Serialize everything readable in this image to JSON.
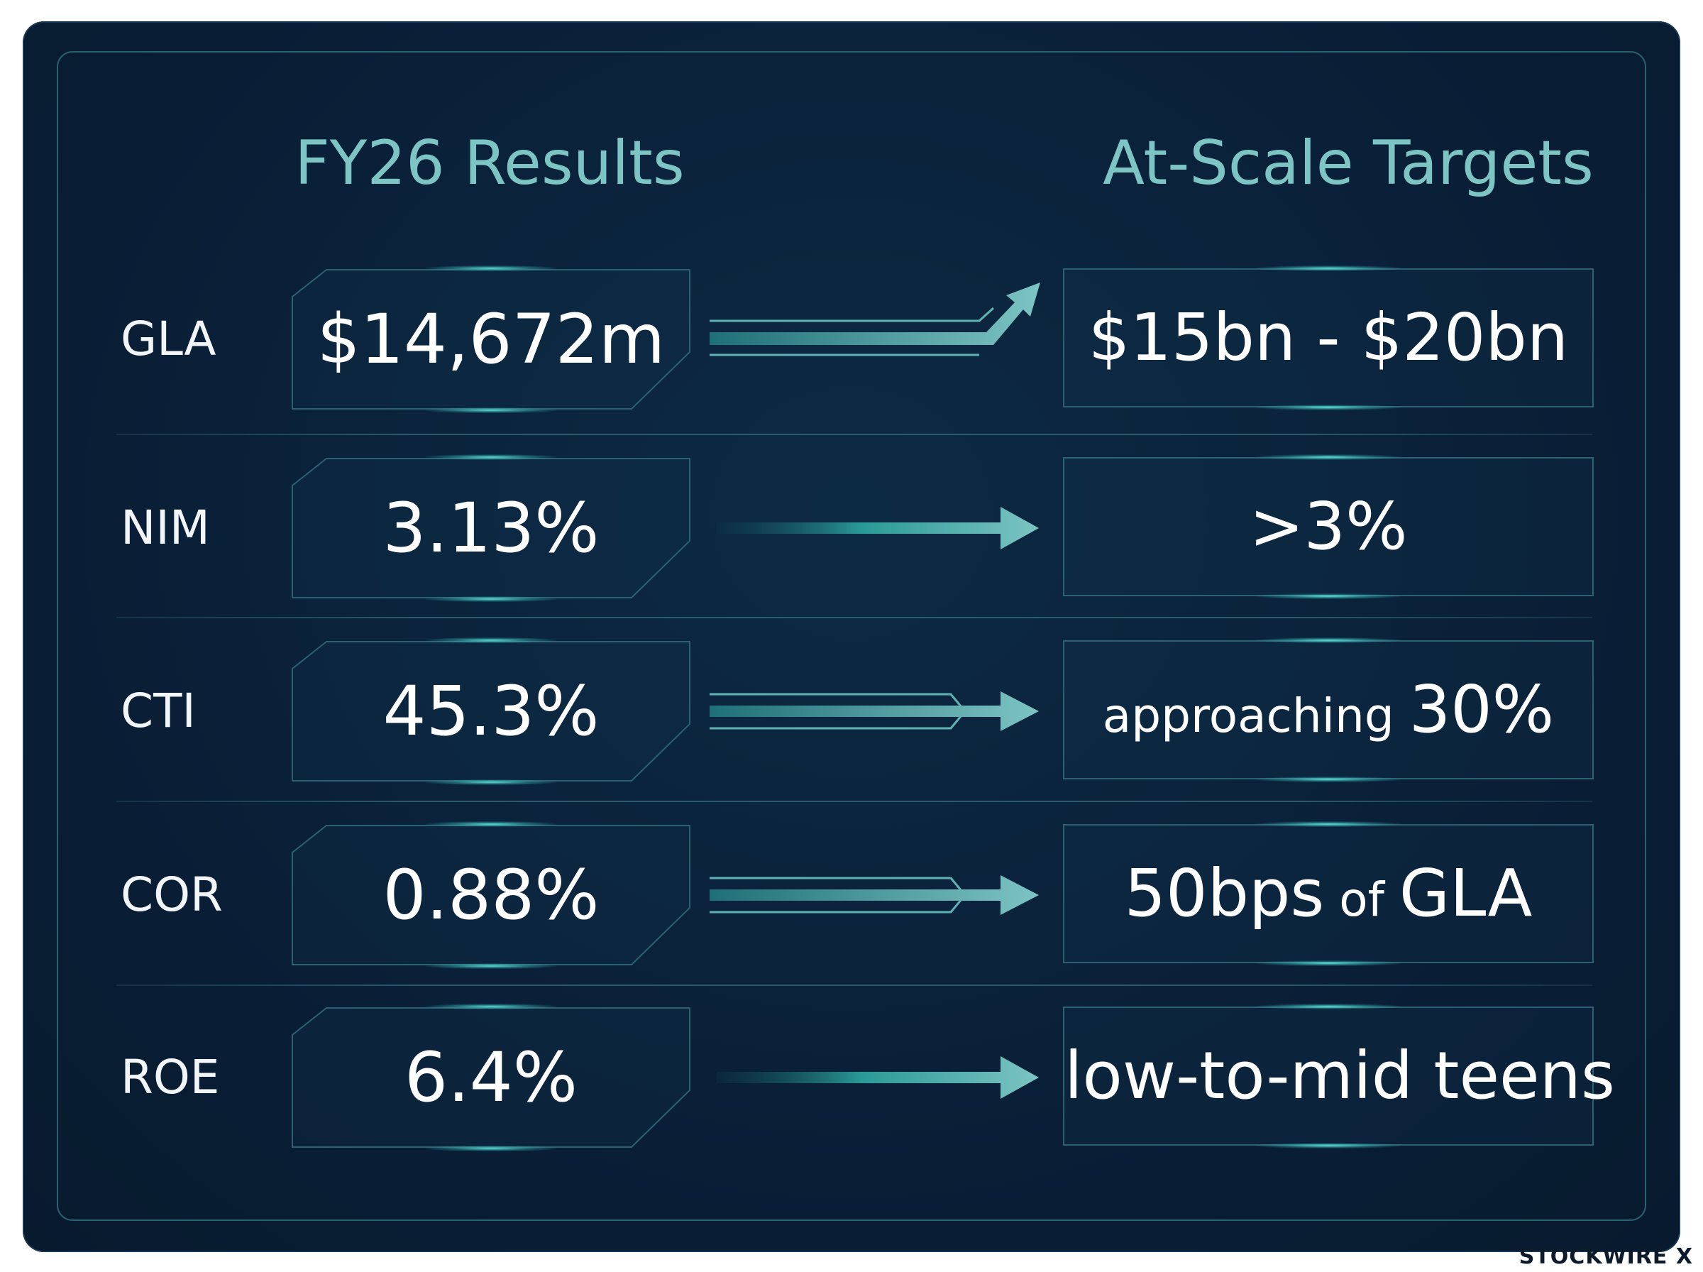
{
  "headers": {
    "left": "FY26 Results",
    "right": "At-Scale Targets"
  },
  "rows": [
    {
      "metric": "GLA",
      "result": "$14,672m",
      "target_main": "$15bn - $20bn",
      "target_small": "",
      "target_suffix": "",
      "arrow_style": "upward"
    },
    {
      "metric": "NIM",
      "result": "3.13%",
      "target_main": ">3%",
      "target_small": "",
      "target_suffix": "",
      "arrow_style": "solid"
    },
    {
      "metric": "CTI",
      "result": "45.3%",
      "target_main": "",
      "target_small": "approaching ",
      "target_suffix": "30%",
      "arrow_style": "double"
    },
    {
      "metric": "COR",
      "result": "0.88%",
      "target_main": "50bps",
      "target_small": " of ",
      "target_suffix": "GLA",
      "arrow_style": "double"
    },
    {
      "metric": "ROE",
      "result": "6.4%",
      "target_main": "low-to-mid teens",
      "target_small": "",
      "target_suffix": "",
      "arrow_style": "solid"
    }
  ],
  "colors": {
    "accent": "#7dc4c4",
    "border": "#2c6170",
    "glow": "#5fe6d7",
    "background": "#0a2038"
  },
  "brand": "STOCKWIRE X"
}
